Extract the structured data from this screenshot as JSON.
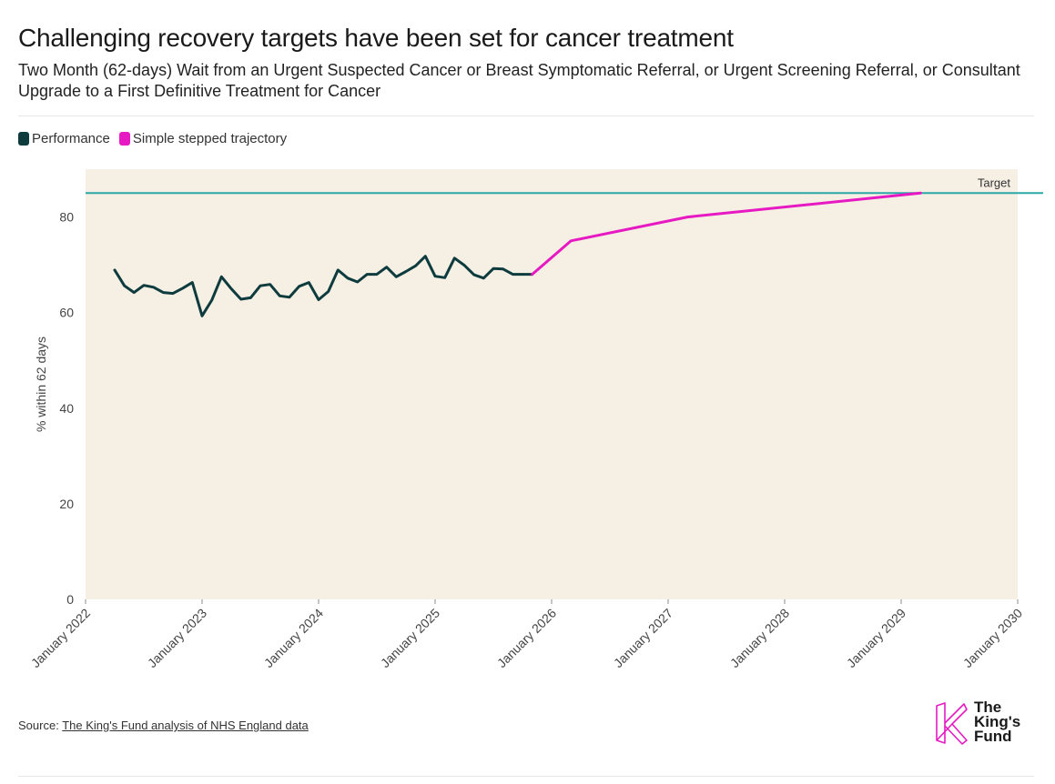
{
  "header": {
    "title": "Challenging recovery targets have been set for cancer treatment",
    "subtitle": "Two Month (62-days) Wait from an Urgent Suspected Cancer or Breast Symptomatic Referral, or Urgent Screening Referral, or Consultant Upgrade to a First Definitive Treatment for Cancer"
  },
  "legend": [
    {
      "label": "Performance",
      "color": "#0d3b3e"
    },
    {
      "label": "Simple stepped trajectory",
      "color": "#e619c3"
    }
  ],
  "chart_data": {
    "type": "line",
    "title": "Challenging recovery targets have been set for cancer treatment",
    "ylabel": "% within 62 days",
    "xlabel": "",
    "ylim": [
      0,
      90
    ],
    "xlim": [
      "2022-01",
      "2030-01"
    ],
    "y_ticks": [
      0,
      20,
      40,
      60,
      80
    ],
    "x_ticks": [
      "January 2022",
      "January 2023",
      "January 2024",
      "January 2025",
      "January 2026",
      "January 2027",
      "January 2028",
      "January 2029",
      "January 2030"
    ],
    "background": "#f6efe4",
    "grid": false,
    "legend_position": "top-left",
    "target": {
      "label": "Target",
      "value": 85,
      "color": "#2aa8a8"
    },
    "series": [
      {
        "name": "Performance",
        "color": "#0d3b3e",
        "x": [
          "2022-04",
          "2022-05",
          "2022-06",
          "2022-07",
          "2022-08",
          "2022-09",
          "2022-10",
          "2022-11",
          "2022-12",
          "2023-01",
          "2023-02",
          "2023-03",
          "2023-04",
          "2023-05",
          "2023-06",
          "2023-07",
          "2023-08",
          "2023-09",
          "2023-10",
          "2023-11",
          "2023-12",
          "2024-01",
          "2024-02",
          "2024-03",
          "2024-04",
          "2024-05",
          "2024-06",
          "2024-07",
          "2024-08",
          "2024-09",
          "2024-10",
          "2024-11",
          "2024-12",
          "2025-01",
          "2025-02",
          "2025-03",
          "2025-04",
          "2025-05",
          "2025-06",
          "2025-07",
          "2025-08",
          "2025-09",
          "2025-10",
          "2025-11"
        ],
        "values": [
          68.9,
          65.6,
          64.2,
          65.7,
          65.3,
          64.2,
          64.0,
          65.1,
          66.3,
          59.3,
          62.6,
          67.5,
          65.0,
          62.8,
          63.1,
          65.6,
          65.9,
          63.5,
          63.2,
          65.5,
          66.3,
          62.7,
          64.4,
          68.9,
          67.2,
          66.4,
          68.0,
          68.0,
          69.5,
          67.5,
          68.6,
          69.8,
          71.8,
          67.6,
          67.3,
          71.4,
          69.9,
          67.9,
          67.2,
          69.2,
          69.1,
          68.0,
          68.0,
          68.0
        ]
      },
      {
        "name": "Simple stepped trajectory",
        "color": "#e619c3",
        "x": [
          "2025-11",
          "2026-03",
          "2027-03",
          "2029-03"
        ],
        "values": [
          68.0,
          75.0,
          80.0,
          85.0
        ]
      }
    ]
  },
  "footer": {
    "source_prefix": "Source: ",
    "source_link": "The King's Fund analysis of NHS England data",
    "logo_text": [
      "The",
      "King's",
      "Fund"
    ]
  }
}
